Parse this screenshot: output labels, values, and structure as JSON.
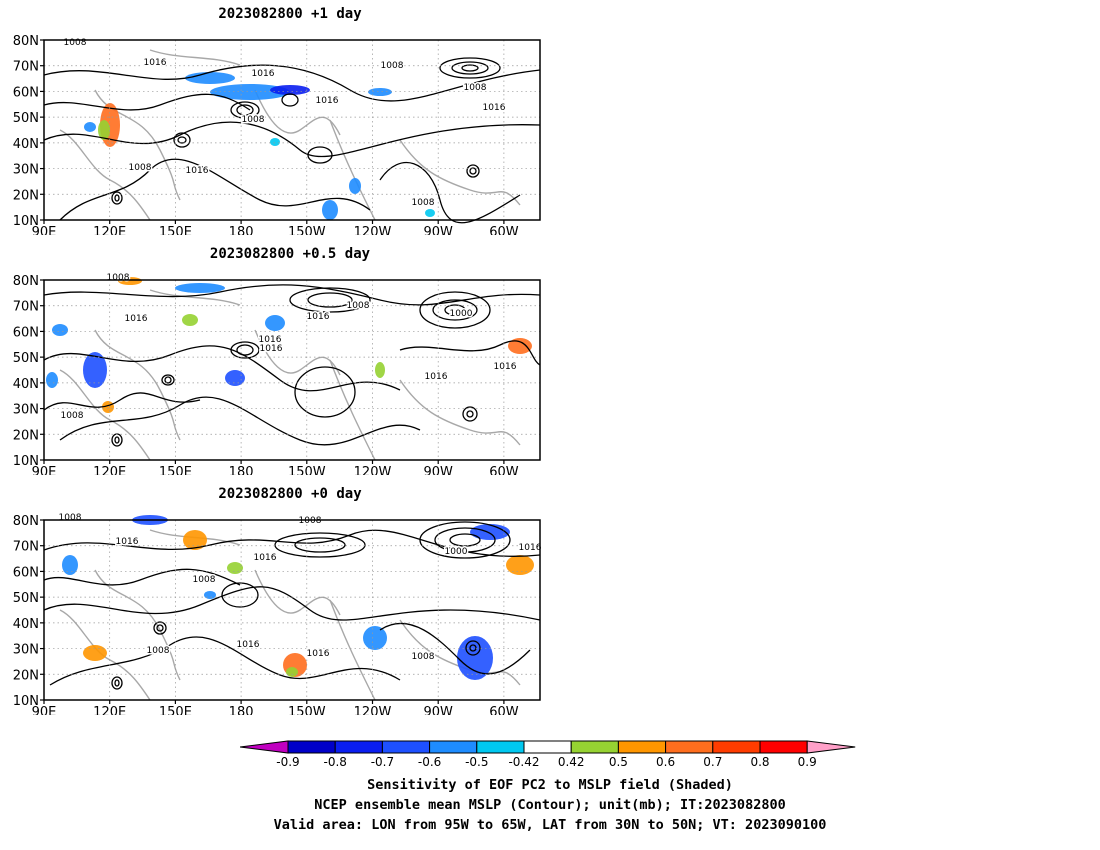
{
  "panels": [
    {
      "title": "2023082800  +1 day",
      "contour_labels": [
        "1008",
        "1016",
        "1016",
        "1008",
        "1016",
        "1008",
        "1008",
        "1016",
        "1008",
        "1016",
        "1008"
      ]
    },
    {
      "title": "2023082800  +0.5 day",
      "contour_labels": [
        "1008",
        "1016",
        "1016",
        "1008",
        "1016",
        "1016",
        "1000",
        "1016",
        "1016",
        "1008"
      ]
    },
    {
      "title": "2023082800  +0 day",
      "contour_labels": [
        "1008",
        "1016",
        "1008",
        "1016",
        "1016",
        "1016",
        "1008",
        "1000",
        "1016",
        "1008",
        "1008"
      ]
    }
  ],
  "axes": {
    "lat_ticks": [
      "80N",
      "70N",
      "60N",
      "50N",
      "40N",
      "30N",
      "20N",
      "10N"
    ],
    "lon_ticks": [
      "90E",
      "120E",
      "150E",
      "180",
      "150W",
      "120W",
      "90W",
      "60W"
    ]
  },
  "colorbar": {
    "ticks": [
      "-0.9",
      "-0.8",
      "-0.7",
      "-0.6",
      "-0.5",
      "-0.42",
      "0.42",
      "0.5",
      "0.6",
      "0.7",
      "0.8",
      "0.9"
    ],
    "colors": [
      "#c000c0",
      "#0000c8",
      "#0a1ef0",
      "#1e50ff",
      "#1e8cff",
      "#00c8f0",
      "#ffffff",
      "#96d232",
      "#ff9600",
      "#ff6e1e",
      "#ff3c00",
      "#ff0000",
      "#ffa0c8"
    ]
  },
  "caption": {
    "line1": "Sensitivity of EOF PC2 to MSLP field (Shaded)",
    "line2": "NCEP ensemble mean MSLP (Contour); unit(mb); IT:2023082800",
    "line3": "Valid area: LON from 95W to 65W, LAT from 30N to 50N; VT: 2023090100"
  }
}
